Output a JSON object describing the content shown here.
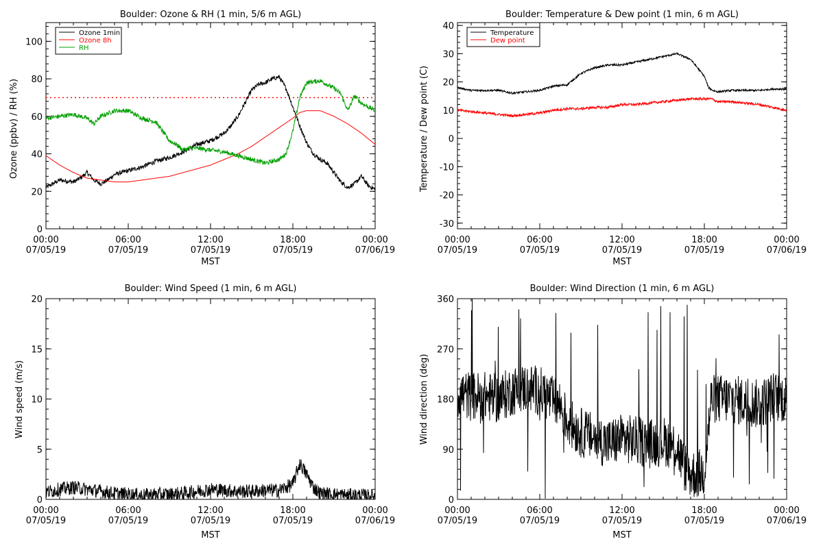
{
  "chart_data": [
    {
      "type": "line",
      "title": "Boulder: Ozone & RH (1 min, 5/6 m AGL)",
      "xlabel": "MST",
      "ylabel": "Ozone (ppbv) / RH (%)",
      "xlim": [
        0,
        24
      ],
      "ylim": [
        0,
        110
      ],
      "yticks": [
        0,
        20,
        40,
        60,
        80,
        100
      ],
      "xticks": [
        {
          "time": "00:00",
          "date": "07/05/19"
        },
        {
          "time": "06:00",
          "date": "07/05/19"
        },
        {
          "time": "12:00",
          "date": "07/05/19"
        },
        {
          "time": "18:00",
          "date": "07/05/19"
        },
        {
          "time": "00:00",
          "date": "07/06/19"
        }
      ],
      "legend_position": "top-left",
      "reference_line": {
        "y": 70,
        "color": "#ff0000",
        "style": "dotted"
      },
      "series": [
        {
          "name": "Ozone 1min",
          "color": "#000000",
          "noise": 1.2,
          "x": [
            0,
            1,
            2,
            2.5,
            3,
            3.5,
            4,
            4.5,
            5,
            6,
            7,
            8,
            9,
            10,
            11,
            12,
            13,
            13.5,
            14,
            14.5,
            15,
            15.5,
            16,
            16.5,
            17,
            17.5,
            18,
            18.5,
            19,
            19.5,
            20,
            20.5,
            21,
            21.5,
            22,
            22.5,
            23,
            23.5,
            24
          ],
          "y": [
            22,
            26,
            25,
            27,
            30,
            26,
            24,
            26,
            29,
            31,
            33,
            36,
            38,
            41,
            45,
            47,
            51,
            55,
            60,
            67,
            74,
            77,
            78,
            80,
            81,
            75,
            65,
            55,
            46,
            40,
            37,
            35,
            30,
            25,
            22,
            24,
            28,
            23,
            21
          ]
        },
        {
          "name": "Ozone 8h",
          "color": "#ff0000",
          "noise": 0,
          "x": [
            0,
            1,
            2,
            3,
            4,
            5,
            6,
            7,
            8,
            9,
            10,
            11,
            12,
            13,
            14,
            15,
            16,
            17,
            18,
            18.5,
            19,
            19.5,
            20,
            21,
            22,
            23,
            24
          ],
          "y": [
            39,
            34,
            30,
            27,
            26,
            25,
            25,
            26,
            27,
            28,
            30,
            32,
            34,
            37,
            40,
            44,
            49,
            54,
            59,
            62,
            63,
            63,
            63,
            60,
            56,
            51,
            45
          ]
        },
        {
          "name": "RH",
          "color": "#00a000",
          "noise": 1.2,
          "x": [
            0,
            1,
            2,
            3,
            3.5,
            4,
            5,
            6,
            7,
            8,
            8.5,
            9,
            9.5,
            10,
            10.5,
            11,
            12,
            13,
            14,
            15,
            16,
            17,
            17.5,
            18,
            18.5,
            19,
            20,
            21,
            21.5,
            22,
            22.5,
            23,
            24
          ],
          "y": [
            59,
            60,
            61,
            59,
            56,
            60,
            63,
            63,
            59,
            57,
            52,
            47,
            45,
            42,
            43,
            43,
            42,
            41,
            39,
            37,
            35,
            37,
            40,
            52,
            70,
            78,
            79,
            75,
            72,
            63,
            71,
            67,
            63
          ]
        }
      ]
    },
    {
      "type": "line",
      "title": "Boulder: Temperature & Dew point (1 min, 6 m AGL)",
      "xlabel": "MST",
      "ylabel": "Temperature / Dew point (C)",
      "xlim": [
        0,
        24
      ],
      "ylim": [
        -32,
        41
      ],
      "yticks": [
        -30,
        -20,
        -10,
        0,
        10,
        20,
        30,
        40
      ],
      "xticks": [
        {
          "time": "00:00",
          "date": "07/05/19"
        },
        {
          "time": "06:00",
          "date": "07/05/19"
        },
        {
          "time": "12:00",
          "date": "07/05/19"
        },
        {
          "time": "18:00",
          "date": "07/05/19"
        },
        {
          "time": "00:00",
          "date": "07/06/19"
        }
      ],
      "legend_position": "top-left",
      "series": [
        {
          "name": "Temperature",
          "color": "#000000",
          "noise": 0.35,
          "x": [
            0,
            1,
            2,
            3,
            4,
            5,
            6,
            7,
            8,
            9,
            10,
            11,
            12,
            13,
            14,
            15,
            16,
            16.5,
            17,
            17.5,
            18,
            18.3,
            18.6,
            19,
            20,
            21,
            22,
            23,
            24
          ],
          "y": [
            18,
            17,
            17,
            17,
            16,
            16.5,
            17,
            18.5,
            19,
            23,
            25,
            26,
            26,
            27,
            28,
            29,
            30,
            29,
            28,
            25,
            22,
            18,
            17,
            16.5,
            17,
            17,
            17,
            17.5,
            17.5
          ]
        },
        {
          "name": "Dew point",
          "color": "#ff0000",
          "noise": 0.45,
          "x": [
            0,
            1,
            2,
            3,
            4,
            5,
            6,
            7,
            8,
            9,
            10,
            11,
            12,
            13,
            14,
            15,
            16,
            17,
            18,
            18.5,
            19,
            20,
            21,
            22,
            23,
            24
          ],
          "y": [
            10,
            9.5,
            9,
            8.5,
            8,
            8.5,
            9,
            10,
            10.5,
            10.5,
            11,
            11,
            12,
            12,
            12.5,
            13,
            13.5,
            14,
            14,
            14,
            13,
            13,
            12.5,
            12,
            11,
            10
          ]
        }
      ]
    },
    {
      "type": "line",
      "title": "Boulder: Wind Speed (1 min, 6 m AGL)",
      "xlabel": "MST",
      "ylabel": "Wind speed (m/s)",
      "xlim": [
        0,
        24
      ],
      "ylim": [
        0,
        20
      ],
      "yticks": [
        0,
        5,
        10,
        15,
        20
      ],
      "xticks": [
        {
          "time": "00:00",
          "date": "07/05/19"
        },
        {
          "time": "06:00",
          "date": "07/05/19"
        },
        {
          "time": "12:00",
          "date": "07/05/19"
        },
        {
          "time": "18:00",
          "date": "07/05/19"
        },
        {
          "time": "00:00",
          "date": "07/06/19"
        }
      ],
      "series": [
        {
          "color": "#000000",
          "noise": 0.7,
          "x": [
            0,
            1,
            2,
            3,
            4,
            5,
            6,
            7,
            8,
            9,
            10,
            11,
            12,
            13,
            14,
            15,
            16,
            17,
            18,
            18.5,
            19,
            19.5,
            20,
            21,
            22,
            23,
            24
          ],
          "y": [
            0.7,
            1,
            1.2,
            1,
            0.8,
            0.6,
            0.5,
            0.4,
            0.5,
            0.5,
            0.6,
            0.8,
            1,
            0.9,
            0.8,
            0.8,
            0.9,
            0.9,
            1.5,
            3.6,
            2.5,
            1.2,
            0.6,
            0.5,
            0.4,
            0.4,
            0.3
          ]
        }
      ]
    },
    {
      "type": "line",
      "title": "Boulder: Wind Direction (1 min, 6 m AGL)",
      "xlabel": "MST",
      "ylabel": "Wind direction (deg)",
      "xlim": [
        0,
        24
      ],
      "ylim": [
        0,
        360
      ],
      "yticks": [
        0,
        90,
        180,
        270,
        360
      ],
      "xticks": [
        {
          "time": "00:00",
          "date": "07/05/19"
        },
        {
          "time": "06:00",
          "date": "07/05/19"
        },
        {
          "time": "12:00",
          "date": "07/05/19"
        },
        {
          "time": "18:00",
          "date": "07/05/19"
        },
        {
          "time": "00:00",
          "date": "07/06/19"
        }
      ],
      "series": [
        {
          "color": "#000000",
          "noise": 45,
          "x": [
            0,
            1,
            2,
            3,
            4,
            5,
            6,
            7,
            7.5,
            8,
            9,
            10,
            11,
            12,
            13,
            14,
            15,
            16,
            16.5,
            17,
            17.5,
            18,
            18.5,
            19,
            20,
            21,
            22,
            23,
            24
          ],
          "y": [
            190,
            185,
            185,
            180,
            195,
            200,
            195,
            175,
            170,
            140,
            120,
            110,
            100,
            110,
            105,
            100,
            105,
            95,
            60,
            45,
            45,
            50,
            180,
            180,
            180,
            175,
            170,
            185,
            180
          ]
        }
      ]
    }
  ]
}
